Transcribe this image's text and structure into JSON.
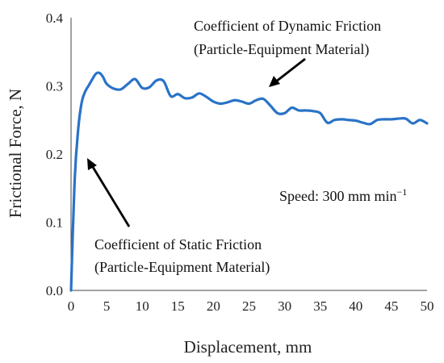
{
  "chart_data": {
    "type": "line",
    "xlabel": "Displacement, mm",
    "ylabel": "Frictional Force, N",
    "xlim": [
      0,
      50
    ],
    "ylim": [
      0,
      0.4
    ],
    "x_ticks": [
      0,
      5,
      10,
      15,
      20,
      25,
      30,
      35,
      40,
      45,
      50
    ],
    "y_ticks": [
      "0.0",
      "0.1",
      "0.2",
      "0.3",
      "0.4"
    ],
    "grid": false,
    "series": [
      {
        "color": "#2a73c7",
        "x": [
          0,
          0.5,
          1,
          1.5,
          2,
          2.5,
          3,
          3.5,
          4,
          4.5,
          5,
          6,
          7,
          8,
          9,
          10,
          11,
          12,
          13,
          14,
          15,
          16,
          17,
          18,
          19,
          20,
          21,
          22,
          23,
          24,
          25,
          26,
          27,
          28,
          29,
          30,
          31,
          32,
          33,
          34,
          35,
          36,
          37,
          38,
          39,
          40,
          41,
          42,
          43,
          44,
          45,
          46,
          47,
          48,
          49,
          50
        ],
        "y": [
          0,
          0.16,
          0.236,
          0.276,
          0.292,
          0.301,
          0.31,
          0.318,
          0.319,
          0.313,
          0.303,
          0.296,
          0.295,
          0.303,
          0.31,
          0.297,
          0.298,
          0.308,
          0.307,
          0.285,
          0.288,
          0.282,
          0.283,
          0.289,
          0.284,
          0.277,
          0.274,
          0.276,
          0.279,
          0.277,
          0.274,
          0.279,
          0.281,
          0.271,
          0.26,
          0.26,
          0.268,
          0.264,
          0.264,
          0.263,
          0.26,
          0.246,
          0.25,
          0.251,
          0.25,
          0.249,
          0.246,
          0.244,
          0.25,
          0.251,
          0.251,
          0.252,
          0.252,
          0.245,
          0.25,
          0.245
        ]
      }
    ],
    "annotations": [
      {
        "lines": [
          "Coefficient of Dynamic Friction",
          "(Particle-Equipment Material)"
        ]
      },
      {
        "lines": [
          "Coefficient of Static Friction",
          "(Particle-Equipment Material)"
        ]
      },
      {
        "text": "Speed: 300 mm min",
        "superscript": "−1"
      }
    ]
  }
}
